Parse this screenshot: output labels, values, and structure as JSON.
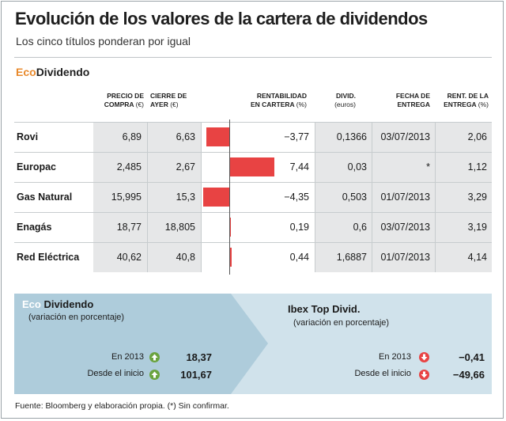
{
  "header": {
    "title": "Evolución de los valores de la cartera de dividendos",
    "subtitle": "Los cinco títulos ponderan por igual",
    "brand_eco": "Eco",
    "brand_div": "Dividendo"
  },
  "columns": {
    "precio": "PRECIO DE",
    "precio2": "COMPRA",
    "precio_unit": "(€)",
    "cierre": "CIERRE DE",
    "cierre2": "AYER",
    "cierre_unit": "(€)",
    "rent": "RENTABILIDAD",
    "rent2": "EN CARTERA",
    "rent_unit": "(%)",
    "divid": "DIVID.",
    "divid_unit": "(euros)",
    "fecha": "FECHA DE",
    "fecha2": "ENTREGA",
    "rentent": "RENT. DE LA",
    "rentent2": "ENTREGA",
    "rentent_unit": "(%)"
  },
  "chart_data": {
    "type": "table",
    "title": "Evolución de los valores de la cartera de dividendos",
    "rows": [
      {
        "name": "Rovi",
        "precio": "6,89",
        "cierre": "6,63",
        "rent_label": "−3,77",
        "rent": -3.77,
        "divid": "0,1366",
        "fecha": "03/07/2013",
        "rentent": "2,06"
      },
      {
        "name": "Europac",
        "precio": "2,485",
        "cierre": "2,67",
        "rent_label": "7,44",
        "rent": 7.44,
        "divid": "0,03",
        "fecha": "*",
        "rentent": "1,12"
      },
      {
        "name": "Gas Natural",
        "precio": "15,995",
        "cierre": "15,3",
        "rent_label": "−4,35",
        "rent": -4.35,
        "divid": "0,503",
        "fecha": "01/07/2013",
        "rentent": "3,29"
      },
      {
        "name": "Enagás",
        "precio": "18,77",
        "cierre": "18,805",
        "rent_label": "0,19",
        "rent": 0.19,
        "divid": "0,6",
        "fecha": "03/07/2013",
        "rentent": "3,19"
      },
      {
        "name": "Red Eléctrica",
        "precio": "40,62",
        "cierre": "40,8",
        "rent_label": "0,44",
        "rent": 0.44,
        "divid": "1,6887",
        "fecha": "01/07/2013",
        "rentent": "4,14"
      }
    ],
    "bar_color": "#e84343"
  },
  "panels": {
    "left": {
      "title_eco": "Eco",
      "title_rest": " Dividendo",
      "sub": "(variación en porcentaje)",
      "lbl1": "En 2013",
      "val1": "18,37",
      "lbl2": "Desde el inicio",
      "val2": "101,67"
    },
    "right": {
      "title": "Ibex Top Divid.",
      "sub": "(variación en porcentaje)",
      "lbl1": "En 2013",
      "val1": "−0,41",
      "lbl2": "Desde el inicio",
      "val2": "−49,66"
    }
  },
  "footer": "Fuente: Bloomberg y elaboración propia. (*) Sin confirmar.",
  "colors": {
    "accent": "#e8892b",
    "up": "#6aa33e",
    "down": "#e84343",
    "panel_left": "#aeccdb",
    "panel_right": "#d0e2eb"
  }
}
